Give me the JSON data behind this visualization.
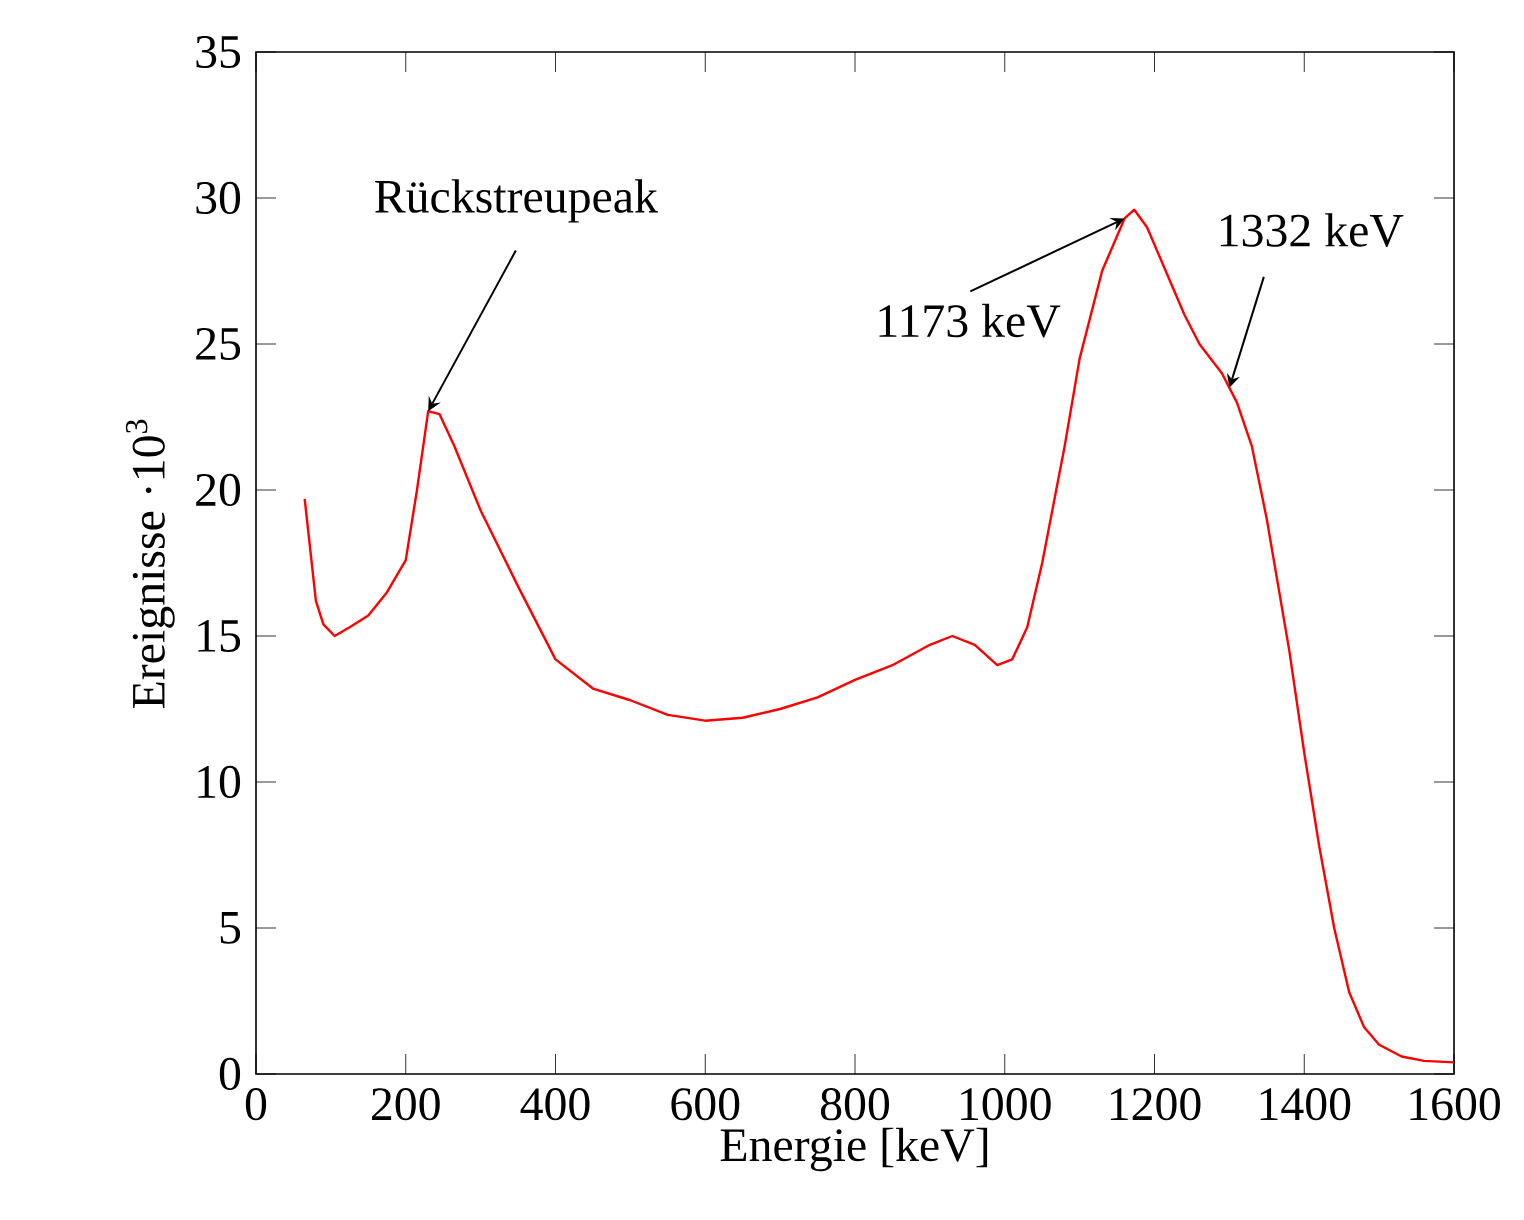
{
  "chart_data": {
    "type": "line",
    "xlabel": "Energie [keV]",
    "ylabel": "Ereignisse ·10$^{3}$",
    "xlim": [
      0,
      1600
    ],
    "xticks": [
      0,
      200,
      400,
      600,
      800,
      1000,
      1200,
      1400,
      1600
    ],
    "ylim": [
      0,
      35
    ],
    "yticks": [
      0,
      5,
      10,
      15,
      20,
      25,
      30,
      35
    ],
    "marker": "none",
    "line_style": "solid",
    "annotations": [
      {
        "text": "Rückstreupeak",
        "x": 230,
        "y": 22.7
      },
      {
        "text": "1173 keV",
        "x": 1160,
        "y": 29.3
      },
      {
        "text": "1332 keV",
        "x": 1300,
        "y": 23.5
      }
    ],
    "series": [
      {
        "color": "#ff0000",
        "x": [
          65,
          80,
          90,
          105,
          125,
          150,
          175,
          200,
          215,
          230,
          245,
          265,
          300,
          350,
          400,
          450,
          500,
          550,
          600,
          650,
          700,
          750,
          800,
          850,
          900,
          930,
          960,
          990,
          1010,
          1030,
          1050,
          1080,
          1100,
          1130,
          1160,
          1173,
          1190,
          1210,
          1240,
          1260,
          1290,
          1310,
          1330,
          1350,
          1380,
          1400,
          1420,
          1440,
          1460,
          1480,
          1500,
          1530,
          1560,
          1600
        ],
        "values": [
          19.7,
          16.2,
          15.4,
          15.0,
          15.3,
          15.7,
          16.5,
          17.6,
          20.0,
          22.7,
          22.6,
          21.5,
          19.3,
          16.7,
          14.2,
          13.2,
          12.8,
          12.3,
          12.1,
          12.2,
          12.5,
          12.9,
          13.5,
          14.0,
          14.7,
          15.0,
          14.7,
          14.0,
          14.2,
          15.3,
          17.5,
          21.5,
          24.5,
          27.5,
          29.3,
          29.6,
          29.0,
          27.8,
          26.0,
          25.0,
          24.0,
          23.0,
          21.5,
          19.0,
          14.5,
          11.0,
          7.8,
          5.0,
          2.8,
          1.6,
          1.0,
          0.6,
          0.45,
          0.4
        ]
      }
    ]
  }
}
